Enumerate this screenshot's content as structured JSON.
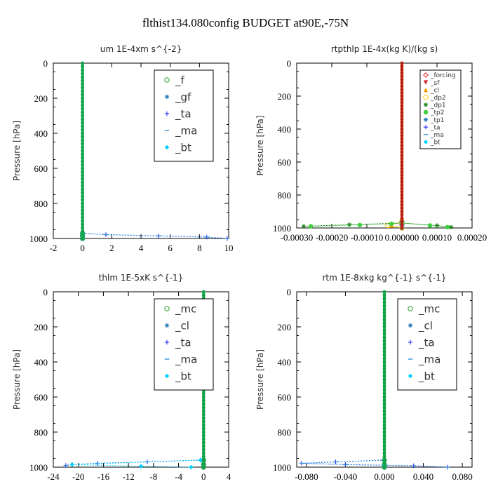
{
  "figure_title": "flthist134.080config  BUDGET at90E,-75N",
  "chart_data": [
    {
      "type": "line",
      "title": "um   1E-4xm  s^{-2}",
      "ylabel": "Pressure [hPa]",
      "xlim": [
        -2,
        10
      ],
      "ylim": [
        1000,
        0
      ],
      "xticks": [
        -2,
        0,
        2,
        4,
        6,
        8,
        10
      ],
      "xtick_labels": [
        "-2",
        "0",
        "2",
        "4",
        "6",
        "8",
        "10"
      ],
      "yticks": [
        0,
        200,
        400,
        600,
        800,
        1000
      ],
      "ytick_labels": [
        "0",
        "200",
        "400",
        "600",
        "800",
        "1000"
      ],
      "legend_position": "top-right",
      "legend_font": 15,
      "series": [
        {
          "name": "_f",
          "color": "#2ca02c",
          "marker": "circle-open",
          "y": [
            970,
            985,
            1000
          ],
          "x": [
            0,
            0,
            0
          ]
        },
        {
          "name": "_gf",
          "color": "#1f77b4",
          "marker": "star",
          "y": [
            970,
            985,
            1000
          ],
          "x": [
            0,
            0,
            0
          ]
        },
        {
          "name": "_ta",
          "color": "#1a1aff",
          "marker": "plus",
          "y": [
            970,
            978,
            985,
            992,
            1000
          ],
          "x": [
            0,
            1.6,
            5.2,
            8.5,
            9.9
          ]
        },
        {
          "name": "_ma",
          "color": "#1f8fd8",
          "marker": "dash",
          "y": [
            970,
            978,
            985,
            992,
            1000
          ],
          "x": [
            0,
            1.6,
            5.2,
            8.5,
            9.9
          ]
        },
        {
          "name": "_bt",
          "color": "#00d0ff",
          "marker": "diamond",
          "y": [
            970,
            985,
            1000
          ],
          "x": [
            0,
            0,
            0
          ]
        }
      ]
    },
    {
      "type": "line",
      "title": "rtpthlp  1E-4x(kg K)/(kg s)",
      "ylabel": "Pressure [hPa]",
      "xlim": [
        -0.0003,
        0.0002
      ],
      "ylim": [
        1000,
        0
      ],
      "xticks": [
        -0.0003,
        -0.0002,
        -0.0001,
        0,
        0.0001,
        0.0002
      ],
      "xtick_labels": [
        "-0.00030",
        "-0.00020",
        "-0.00010",
        "0.000000",
        "0.00010",
        "0.00020"
      ],
      "yticks": [
        0,
        200,
        400,
        600,
        800,
        1000
      ],
      "ytick_labels": [
        "0",
        "200",
        "400",
        "600",
        "800",
        "1000"
      ],
      "legend_position": "top-right",
      "legend_font": 9,
      "series": [
        {
          "name": "_forcing",
          "color": "#e41a1c",
          "marker": "diamond-open",
          "y": [
            960,
            980,
            1000
          ],
          "x": [
            0,
            0,
            0
          ]
        },
        {
          "name": "_sf",
          "color": "#d62728",
          "marker": "triangle-down",
          "y": [
            960,
            980,
            1000
          ],
          "x": [
            0,
            0,
            0
          ]
        },
        {
          "name": "_cl",
          "color": "#ff9900",
          "marker": "triangle",
          "y": [
            960,
            985,
            1000
          ],
          "x": [
            0,
            -3e-05,
            0
          ]
        },
        {
          "name": "_dp2",
          "color": "#ffcc00",
          "marker": "circle-open",
          "y": [
            960,
            985,
            1000
          ],
          "x": [
            0,
            -4e-05,
            0
          ]
        },
        {
          "name": "_dp1",
          "color": "#1a7f1a",
          "marker": "star",
          "y": [
            990,
            980,
            970,
            985,
            995
          ],
          "x": [
            -0.00028,
            -0.00015,
            0,
            0.0001,
            0.00014
          ]
        },
        {
          "name": "_tp2",
          "color": "#3ecf3e",
          "marker": "circle",
          "y": [
            990,
            982,
            975,
            970,
            985,
            995
          ],
          "x": [
            -0.00026,
            -0.00012,
            -3e-05,
            0,
            8e-05,
            0.00013
          ]
        },
        {
          "name": "_tp1",
          "color": "#1f77b4",
          "marker": "star",
          "y": [
            960,
            985,
            1000
          ],
          "x": [
            0,
            0,
            0
          ]
        },
        {
          "name": "_ta",
          "color": "#1a1aff",
          "marker": "plus",
          "y": [
            960,
            985,
            1000
          ],
          "x": [
            0,
            0,
            0
          ]
        },
        {
          "name": "_ma",
          "color": "#1f8fd8",
          "marker": "dash",
          "y": [
            960,
            985,
            1000
          ],
          "x": [
            0,
            0,
            0
          ]
        },
        {
          "name": "_bt",
          "color": "#00d0ff",
          "marker": "diamond",
          "y": [
            960,
            985,
            1000
          ],
          "x": [
            0,
            0,
            0
          ]
        }
      ]
    },
    {
      "type": "line",
      "title": "thlm   1E-5xK  s^{-1}",
      "ylabel": "Pressure [hPa]",
      "xlim": [
        -24,
        4
      ],
      "ylim": [
        1000,
        0
      ],
      "xticks": [
        -24,
        -20,
        -16,
        -12,
        -8,
        -4,
        0,
        4
      ],
      "xtick_labels": [
        "-24",
        "-20",
        "-16",
        "-12",
        "-8",
        "-4",
        "0",
        "4"
      ],
      "yticks": [
        0,
        200,
        400,
        600,
        800,
        1000
      ],
      "ytick_labels": [
        "0",
        "200",
        "400",
        "600",
        "800",
        "1000"
      ],
      "legend_position": "top-right",
      "legend_font": 15,
      "series": [
        {
          "name": "_mc",
          "color": "#2ca02c",
          "marker": "circle-open",
          "y": [
            960,
            985,
            1000
          ],
          "x": [
            0,
            0,
            0
          ]
        },
        {
          "name": "_cl",
          "color": "#1f77b4",
          "marker": "star",
          "y": [
            960,
            985,
            1000
          ],
          "x": [
            0,
            0,
            0
          ]
        },
        {
          "name": "_ta",
          "color": "#1a1aff",
          "marker": "plus",
          "y": [
            960,
            970,
            978,
            985,
            990
          ],
          "x": [
            -0.5,
            -9,
            -17,
            -21,
            -22
          ]
        },
        {
          "name": "_ma",
          "color": "#1f8fd8",
          "marker": "dash",
          "y": [
            960,
            970,
            978,
            985,
            990
          ],
          "x": [
            -0.5,
            -9,
            -17,
            -21,
            -22
          ]
        },
        {
          "name": "_bt",
          "color": "#00d0ff",
          "marker": "diamond",
          "y": [
            960,
            985,
            995,
            1000
          ],
          "x": [
            -0.5,
            -21,
            -10,
            -2
          ]
        }
      ]
    },
    {
      "type": "line",
      "title": "rtm   1E-8xkg  kg^{-1}  s^{-1}",
      "ylabel": "Pressure [hPa]",
      "xlim": [
        -0.09,
        0.09
      ],
      "ylim": [
        1000,
        0
      ],
      "xticks": [
        -0.08,
        -0.04,
        0,
        0.04,
        0.08
      ],
      "xtick_labels": [
        "-0.080",
        "-0.040",
        "0.000",
        "0.040",
        "0.080"
      ],
      "yticks": [
        0,
        200,
        400,
        600,
        800,
        1000
      ],
      "ytick_labels": [
        "0",
        "200",
        "400",
        "600",
        "800",
        "1000"
      ],
      "legend_position": "top-right",
      "legend_font": 15,
      "series": [
        {
          "name": "_mc",
          "color": "#2ca02c",
          "marker": "circle-open",
          "y": [
            960,
            985,
            1000
          ],
          "x": [
            0,
            0,
            0
          ]
        },
        {
          "name": "_cl",
          "color": "#1f77b4",
          "marker": "star",
          "y": [
            960,
            985,
            1000
          ],
          "x": [
            0,
            0,
            0
          ]
        },
        {
          "name": "_ta",
          "color": "#1a1aff",
          "marker": "plus",
          "y": [
            960,
            970,
            978,
            985,
            992,
            1000
          ],
          "x": [
            0,
            -0.05,
            -0.085,
            -0.04,
            0.03,
            0.065
          ]
        },
        {
          "name": "_ma",
          "color": "#1f8fd8",
          "marker": "dash",
          "y": [
            960,
            970,
            978,
            985,
            992,
            1000
          ],
          "x": [
            0,
            -0.05,
            -0.085,
            -0.04,
            0.03,
            0.065
          ]
        },
        {
          "name": "_bt",
          "color": "#00d0ff",
          "marker": "diamond",
          "y": [
            960,
            985,
            1000
          ],
          "x": [
            0,
            0,
            0
          ]
        }
      ],
      "zero_line_color": "#1fbf5a"
    }
  ],
  "zero_line_color": "#1fbf5a"
}
